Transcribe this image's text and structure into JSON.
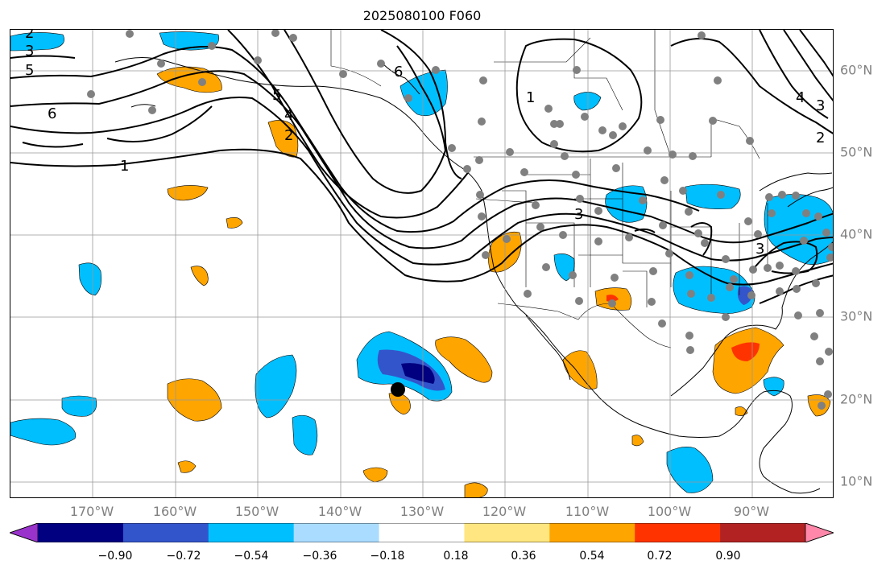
{
  "title": "2025080100 F060",
  "axes": {
    "lon_labels": [
      "170°W",
      "160°W",
      "150°W",
      "140°W",
      "130°W",
      "120°W",
      "110°W",
      "100°W",
      "90°W"
    ],
    "lat_labels": [
      "60°N",
      "50°N",
      "40°N",
      "30°N",
      "20°N",
      "10°N"
    ],
    "lon_range": [
      -180,
      -80
    ],
    "lat_range": [
      7.9,
      65
    ],
    "grid": true
  },
  "colorbar": {
    "tick_labels": [
      "−0.90",
      "−0.72",
      "−0.54",
      "−0.36",
      "−0.18",
      "0.18",
      "0.36",
      "0.54",
      "0.72",
      "0.90"
    ],
    "colors": [
      "#9933cc",
      "#000080",
      "#3355cc",
      "#00bfff",
      "#aadcff",
      "#ffffff",
      "#ffe680",
      "#ffa500",
      "#ff3300",
      "#b22222",
      "#ff88aa"
    ],
    "extend": "both"
  },
  "chart_data": {
    "type": "map",
    "contour_labels": [
      "1",
      "2",
      "3",
      "4",
      "5",
      "6"
    ],
    "colors": {
      "negative_fill": "#00bfff",
      "negative_strong": "#3355cc",
      "negative_max": "#000080",
      "positive_fill": "#ffa500",
      "positive_strong": "#ff3300",
      "stations": "#808080",
      "contours": "#000000"
    }
  }
}
